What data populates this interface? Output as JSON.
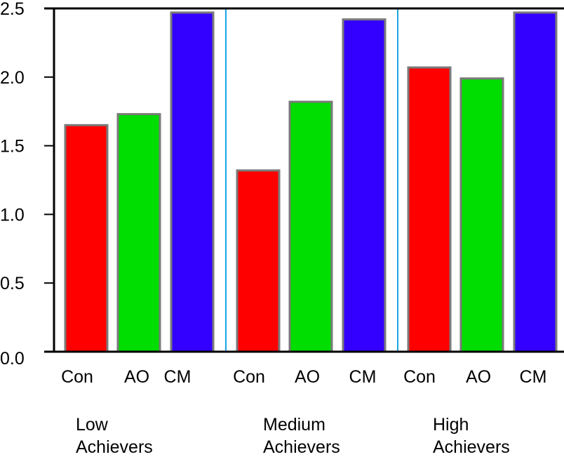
{
  "chart_data": {
    "type": "bar",
    "ylim": [
      0,
      2.5
    ],
    "y_ticks": [
      "0.0",
      "0.5",
      "1.0",
      "1.5",
      "2.0",
      "2.5"
    ],
    "grid": false,
    "legend": "none",
    "groups": [
      {
        "label": "Low Achievers",
        "label_lines": [
          "Low",
          "Achievers"
        ],
        "bars": [
          {
            "category": "Con",
            "value": 1.65,
            "color": "#ff0000"
          },
          {
            "category": "AO",
            "value": 1.73,
            "color": "#00dd00"
          },
          {
            "category": "CM",
            "value": 2.47,
            "color": "#3300ff"
          }
        ]
      },
      {
        "label": "Medium Achievers",
        "label_lines": [
          "Medium",
          "Achievers"
        ],
        "bars": [
          {
            "category": "Con",
            "value": 1.32,
            "color": "#ff0000"
          },
          {
            "category": "AO",
            "value": 1.82,
            "color": "#00dd00"
          },
          {
            "category": "CM",
            "value": 2.42,
            "color": "#3300ff"
          }
        ]
      },
      {
        "label": "High Achievers",
        "label_lines": [
          "High",
          "Achievers"
        ],
        "bars": [
          {
            "category": "Con",
            "value": 2.07,
            "color": "#ff0000"
          },
          {
            "category": "AO",
            "value": 1.99,
            "color": "#00dd00"
          },
          {
            "category": "CM",
            "value": 2.47,
            "color": "#3300ff"
          }
        ]
      }
    ],
    "separator_color": "#1aa6e6",
    "bar_border_color": "#7a7a7a"
  }
}
